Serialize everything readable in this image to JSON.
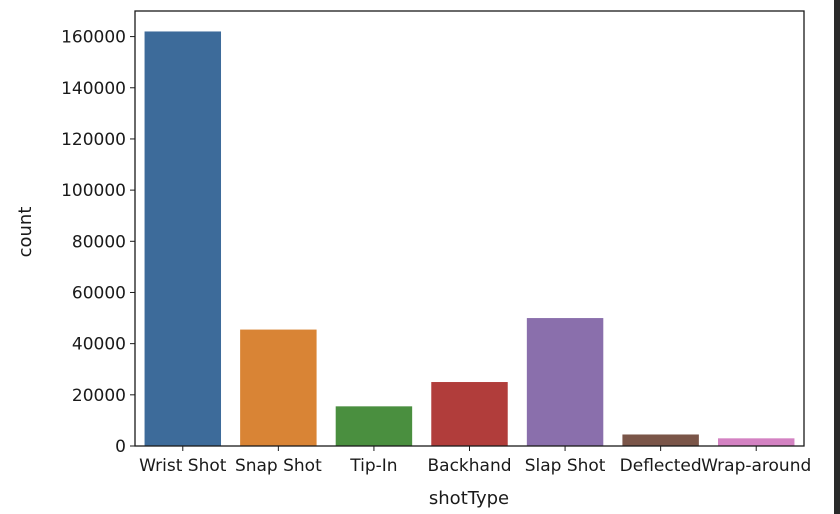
{
  "chart_data": {
    "type": "bar",
    "categories": [
      "Wrist Shot",
      "Snap Shot",
      "Tip-In",
      "Backhand",
      "Slap Shot",
      "Deflected",
      "Wrap-around"
    ],
    "values": [
      162000,
      45500,
      15500,
      25000,
      50000,
      4500,
      3000
    ],
    "colors": [
      "#3d6b9a",
      "#d98435",
      "#4a8f3f",
      "#b13d3b",
      "#8a6fac",
      "#7a5548",
      "#d382c2"
    ],
    "xlabel": "shotType",
    "ylabel": "count",
    "ylim": [
      0,
      170000
    ],
    "yticks": [
      0,
      20000,
      40000,
      60000,
      80000,
      100000,
      120000,
      140000,
      160000
    ],
    "ytick_labels": [
      "0",
      "20000",
      "40000",
      "60000",
      "80000",
      "100000",
      "120000",
      "140000",
      "160000"
    ],
    "grid": false
  }
}
